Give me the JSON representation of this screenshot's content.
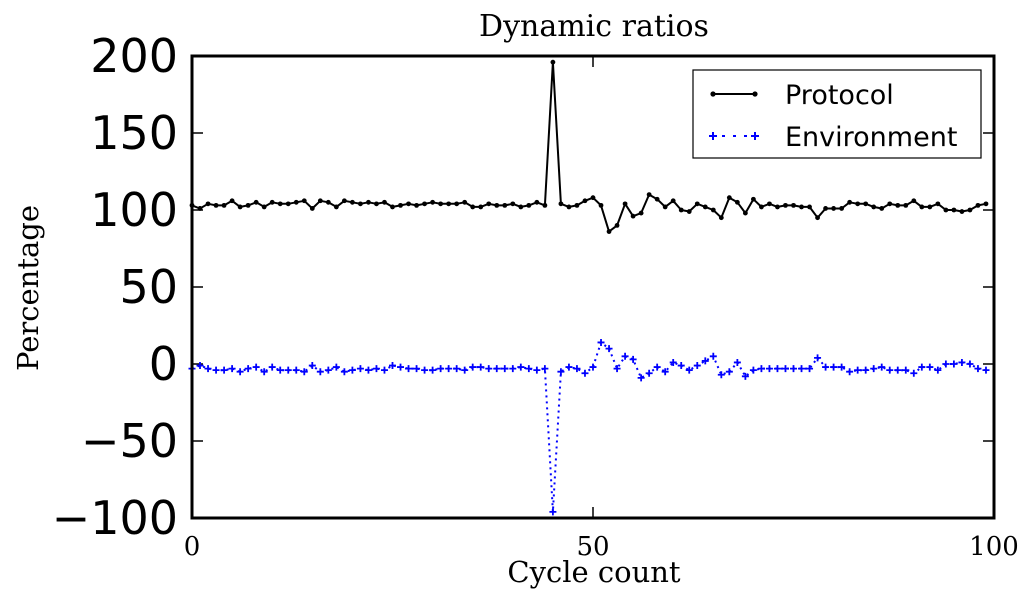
{
  "chart_data": {
    "type": "line",
    "title": "Dynamic ratios",
    "xlabel": "Cycle count",
    "ylabel": "Percentage",
    "xlim": [
      0,
      100
    ],
    "ylim": [
      -100,
      200
    ],
    "xticks": [
      "0",
      "50",
      "100"
    ],
    "yticks": [
      "200",
      "150",
      "100",
      "50",
      "0",
      "−50",
      "−100"
    ],
    "grid": false,
    "legend_position": "top-right",
    "x": [
      0,
      1,
      2,
      3,
      4,
      5,
      6,
      7,
      8,
      9,
      10,
      11,
      12,
      13,
      14,
      15,
      16,
      17,
      18,
      19,
      20,
      21,
      22,
      23,
      24,
      25,
      26,
      27,
      28,
      29,
      30,
      31,
      32,
      33,
      34,
      35,
      36,
      37,
      38,
      39,
      40,
      41,
      42,
      43,
      44,
      45,
      46,
      47,
      48,
      49,
      50,
      51,
      52,
      53,
      54,
      55,
      56,
      57,
      58,
      59,
      60,
      61,
      62,
      63,
      64,
      65,
      66,
      67,
      68,
      69,
      70,
      71,
      72,
      73,
      74,
      75,
      76,
      77,
      78,
      79,
      80,
      81,
      82,
      83,
      84,
      85,
      86,
      87,
      88,
      89,
      90,
      91,
      92,
      93,
      94,
      95,
      96,
      97,
      98,
      99
    ],
    "series": [
      {
        "name": "Protocol",
        "color": "#000000",
        "line_style": "solid",
        "marker": "point",
        "values": [
          103,
          101,
          104,
          103,
          103,
          106,
          102,
          103,
          105,
          102,
          105,
          104,
          104,
          105,
          106,
          101,
          106,
          105,
          102,
          106,
          105,
          104,
          105,
          104,
          105,
          102,
          103,
          104,
          103,
          104,
          105,
          104,
          104,
          104,
          105,
          102,
          102,
          104,
          103,
          103,
          104,
          102,
          103,
          105,
          103,
          196,
          104,
          102,
          103,
          106,
          108,
          103,
          86,
          90,
          104,
          96,
          98,
          110,
          107,
          102,
          106,
          100,
          99,
          104,
          102,
          100,
          95,
          108,
          105,
          98,
          107,
          102,
          104,
          102,
          103,
          103,
          102,
          102,
          95,
          101,
          101,
          101,
          105,
          104,
          104,
          102,
          101,
          104,
          103,
          103,
          106,
          102,
          102,
          104,
          100,
          100,
          99,
          100,
          103,
          104
        ]
      },
      {
        "name": "Environment",
        "color": "#0000ff",
        "line_style": "dotted",
        "marker": "plus",
        "values": [
          -3,
          -1,
          -3,
          -4,
          -4,
          -3,
          -5,
          -3,
          -2,
          -5,
          -2,
          -4,
          -4,
          -4,
          -5,
          -1,
          -5,
          -4,
          -2,
          -5,
          -4,
          -3,
          -4,
          -3,
          -4,
          -1,
          -2,
          -3,
          -3,
          -4,
          -4,
          -3,
          -3,
          -3,
          -4,
          -2,
          -2,
          -3,
          -3,
          -3,
          -3,
          -2,
          -3,
          -4,
          -3,
          -96,
          -5,
          -2,
          -3,
          -6,
          -2,
          14,
          10,
          -3,
          5,
          3,
          -9,
          -6,
          -2,
          -5,
          1,
          -1,
          -4,
          -1,
          2,
          5,
          -7,
          -5,
          1,
          -8,
          -4,
          -3,
          -3,
          -3,
          -3,
          -3,
          -3,
          -3,
          4,
          -2,
          -2,
          -2,
          -5,
          -4,
          -4,
          -3,
          -2,
          -4,
          -4,
          -4,
          -6,
          -2,
          -2,
          -4,
          0,
          0,
          1,
          0,
          -3,
          -4
        ]
      }
    ]
  }
}
